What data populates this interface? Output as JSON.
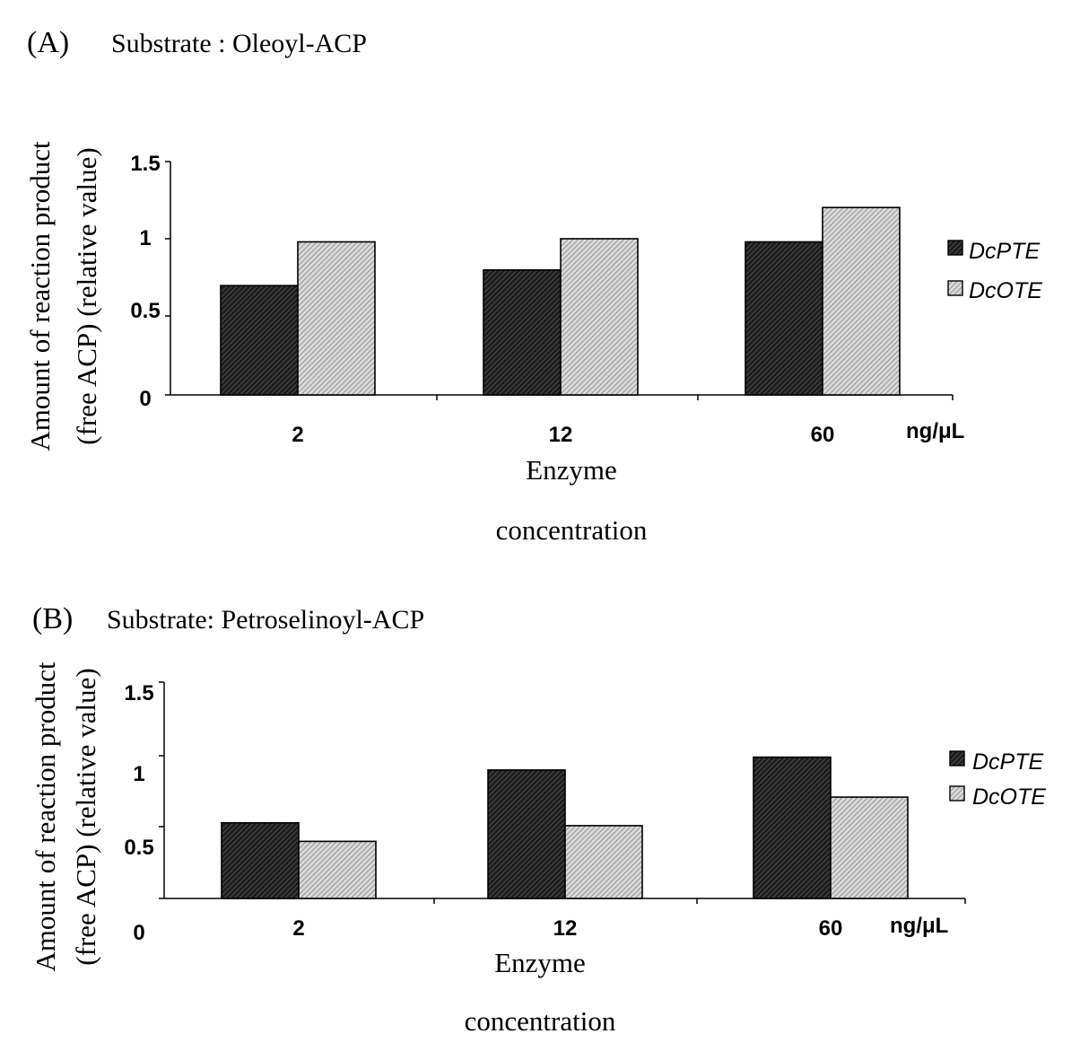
{
  "colors": {
    "dark_fill": "#2e2e2e",
    "light_fill": "#bdbdbd",
    "axis": "#000000"
  },
  "chart_data": [
    {
      "type": "bar",
      "panel_label": "(A)",
      "title": "Substrate : Oleoyl-ACP",
      "xlabel_line1": "Enzyme",
      "xlabel_line2": "concentration",
      "x_unit": "ng/μL",
      "ylabel_line1": "Amount of reaction product",
      "ylabel_line2": "(free ACP)  (relative value)",
      "ylim": [
        0,
        1.5
      ],
      "yticks": [
        0,
        0.5,
        1,
        1.5
      ],
      "ytick_labels": [
        "0",
        "0.5",
        "1",
        "1.5"
      ],
      "categories": [
        "2",
        "12",
        "60"
      ],
      "series": [
        {
          "name": "DcPTE",
          "pattern": "dark",
          "values": [
            0.7,
            0.8,
            0.98
          ]
        },
        {
          "name": "DcOTE",
          "pattern": "light",
          "values": [
            0.98,
            1.0,
            1.2
          ]
        }
      ],
      "legend": "right"
    },
    {
      "type": "bar",
      "panel_label": "(B)",
      "title": "Substrate: Petroselinoyl-ACP",
      "xlabel_line1": "Enzyme",
      "xlabel_line2": "concentration",
      "x_unit": "ng/μL",
      "ylabel_line1": "Amount of reaction product",
      "ylabel_line2": "(free ACP)  (relative value)",
      "ylim": [
        0,
        1.5
      ],
      "yticks": [
        0,
        0.5,
        1,
        1.5
      ],
      "ytick_labels": [
        "0",
        "0.5",
        "1",
        "1.5"
      ],
      "categories": [
        "2",
        "12",
        "60"
      ],
      "series": [
        {
          "name": "DcPTE",
          "pattern": "dark",
          "values": [
            0.53,
            0.9,
            0.99
          ]
        },
        {
          "name": "DcOTE",
          "pattern": "light",
          "values": [
            0.4,
            0.51,
            0.71
          ]
        }
      ],
      "legend": "right"
    }
  ]
}
